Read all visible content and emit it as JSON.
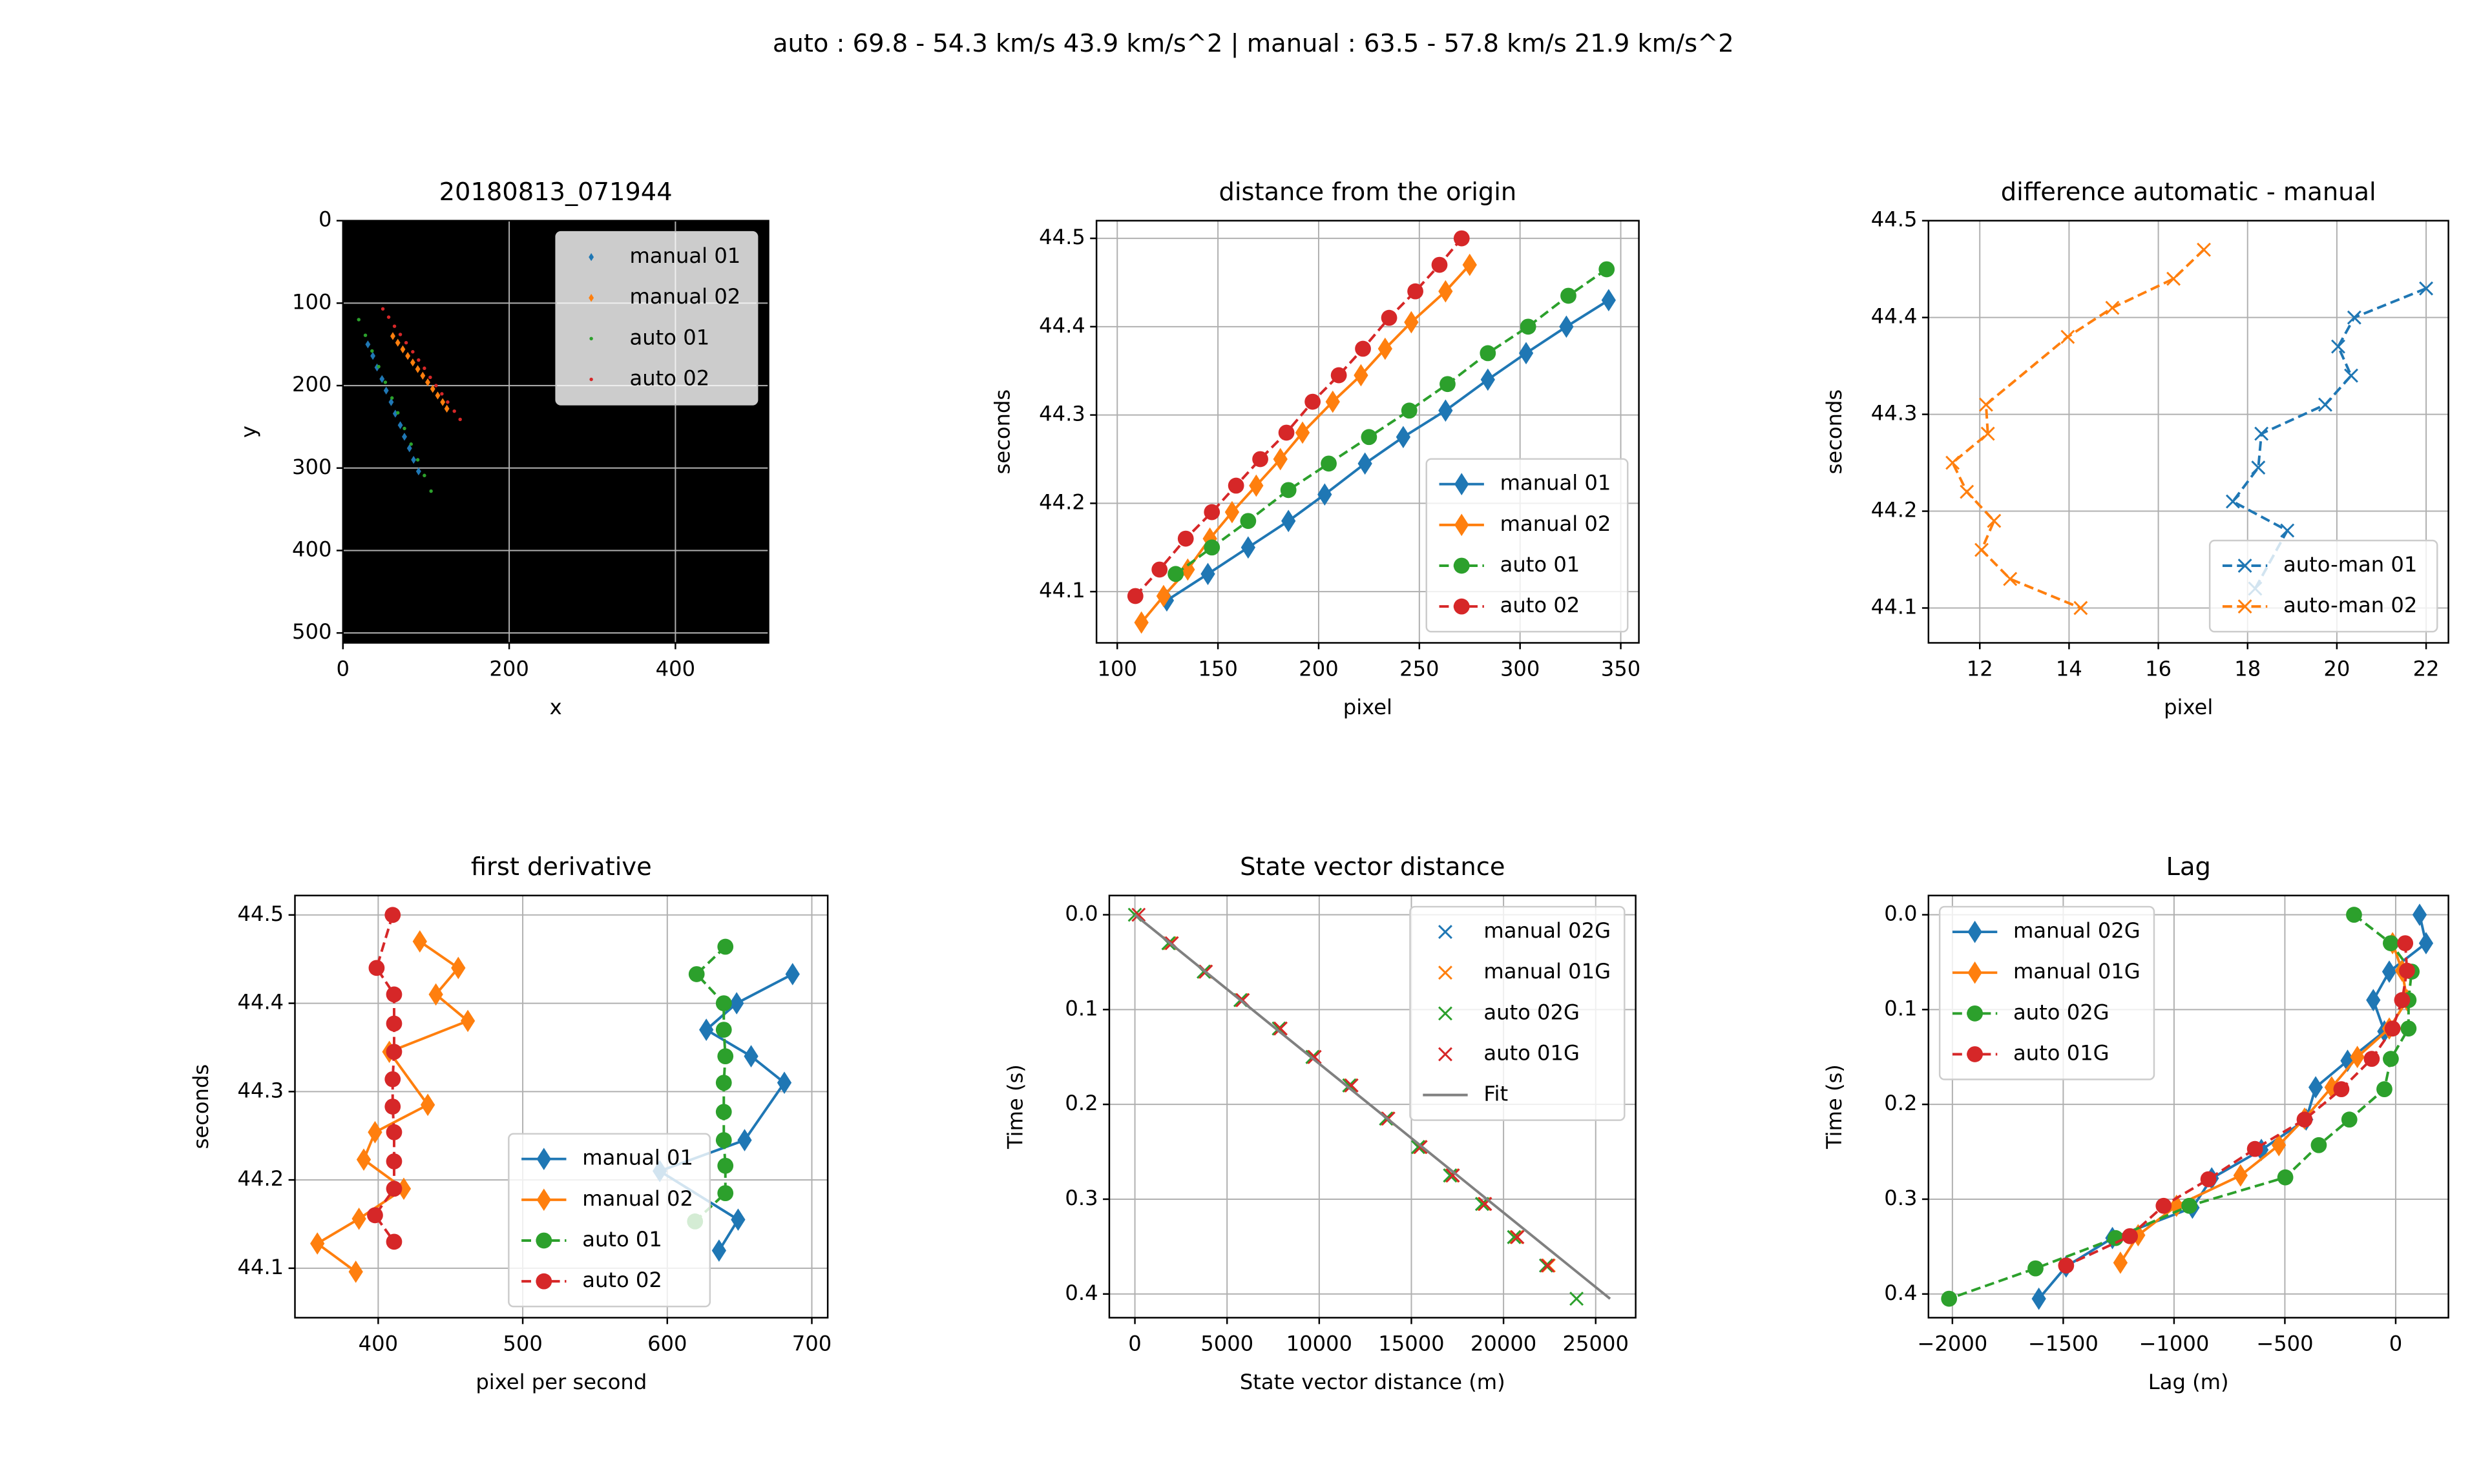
{
  "title": "auto : 69.8 - 54.3 km/s 43.9 km/s^2 | manual : 63.5 - 57.8 km/s 21.9 km/s^2",
  "chart_data": [
    {
      "type": "scatter",
      "title": "20180813_071944",
      "x_label": "x",
      "y_label": "y",
      "background": "#000000",
      "xlim": [
        0,
        512
      ],
      "ylim": [
        512,
        0
      ],
      "xticks": [
        0,
        200,
        400
      ],
      "yticks": [
        0,
        100,
        200,
        300,
        400,
        500
      ],
      "grid": true,
      "legend": "upper right",
      "series": [
        {
          "name": "manual 01",
          "color": "#1f77b4",
          "marker": "diamond-small",
          "linestyle": "none",
          "x": [
            30,
            36,
            41,
            47,
            52,
            58,
            63,
            69,
            74,
            80,
            85,
            91
          ],
          "values": [
            150,
            164,
            178,
            192,
            206,
            220,
            234,
            248,
            262,
            276,
            290,
            304
          ]
        },
        {
          "name": "manual 02",
          "color": "#ff7f0e",
          "marker": "diamond-small",
          "linestyle": "none",
          "x": [
            60,
            66,
            72,
            78,
            84,
            90,
            96,
            102,
            108,
            114,
            120,
            125
          ],
          "values": [
            140,
            148,
            156,
            164,
            172,
            180,
            188,
            196,
            204,
            212,
            220,
            228
          ]
        },
        {
          "name": "auto 01",
          "color": "#2ca02c",
          "marker": "point",
          "linestyle": "none",
          "x": [
            19,
            27,
            35,
            43,
            51,
            59,
            66,
            74,
            82,
            90,
            98,
            106
          ],
          "values": [
            120,
            139,
            158,
            177,
            196,
            215,
            233,
            252,
            271,
            290,
            309,
            328
          ]
        },
        {
          "name": "auto 02",
          "color": "#d62728",
          "marker": "point",
          "linestyle": "none",
          "x": [
            48,
            55,
            62,
            69,
            76,
            84,
            91,
            98,
            105,
            112,
            119,
            126,
            134,
            141
          ],
          "values": [
            107,
            117,
            128,
            138,
            148,
            159,
            169,
            179,
            190,
            200,
            210,
            220,
            231,
            241
          ]
        }
      ]
    },
    {
      "type": "line",
      "title": "distance from the origin",
      "x_label": "pixel",
      "y_label": "seconds",
      "xlim": [
        89.7,
        359
      ],
      "ylim": [
        44.042,
        44.52
      ],
      "xticks": [
        100,
        150,
        200,
        250,
        300,
        350
      ],
      "yticks": [
        44.1,
        44.2,
        44.3,
        44.4,
        44.5
      ],
      "grid": true,
      "legend": "lower right",
      "series": [
        {
          "name": "manual 01",
          "color": "#1f77b4",
          "marker": "diamond",
          "linestyle": "solid",
          "x": [
            124.6,
            145,
            165,
            185,
            203,
            223,
            242,
            263,
            284,
            303,
            323,
            344
          ],
          "values": [
            44.09,
            44.12,
            44.15,
            44.18,
            44.21,
            44.245,
            44.275,
            44.305,
            44.34,
            44.37,
            44.4,
            44.43
          ]
        },
        {
          "name": "manual 02",
          "color": "#ff7f0e",
          "marker": "diamond",
          "linestyle": "solid",
          "x": [
            112,
            123,
            135,
            146,
            157,
            169,
            181,
            192,
            207,
            221,
            233,
            246,
            263,
            275
          ],
          "values": [
            44.065,
            44.095,
            44.125,
            44.16,
            44.19,
            44.22,
            44.25,
            44.28,
            44.315,
            44.345,
            44.375,
            44.405,
            44.44,
            44.47
          ]
        },
        {
          "name": "auto 01",
          "color": "#2ca02c",
          "marker": "circle",
          "linestyle": "dashed",
          "x": [
            129,
            147,
            165,
            185,
            205,
            225,
            245,
            264,
            284,
            304,
            324,
            343
          ],
          "values": [
            44.12,
            44.15,
            44.18,
            44.215,
            44.245,
            44.275,
            44.305,
            44.335,
            44.37,
            44.4,
            44.435,
            44.465
          ]
        },
        {
          "name": "auto 02",
          "color": "#d62728",
          "marker": "circle",
          "linestyle": "dashed",
          "x": [
            109,
            121,
            134,
            147,
            159,
            171,
            184,
            197,
            210,
            222,
            235,
            248,
            260,
            271
          ],
          "values": [
            44.095,
            44.125,
            44.16,
            44.19,
            44.22,
            44.25,
            44.28,
            44.315,
            44.345,
            44.375,
            44.41,
            44.44,
            44.47,
            44.5
          ]
        }
      ]
    },
    {
      "type": "line",
      "title": "difference automatic - manual",
      "x_label": "pixel",
      "y_label": "seconds",
      "xlim": [
        10.85,
        22.5
      ],
      "ylim": [
        44.064,
        44.5
      ],
      "xticks": [
        12,
        14,
        16,
        18,
        20,
        22
      ],
      "yticks": [
        44.1,
        44.2,
        44.3,
        44.4,
        44.5
      ],
      "grid": true,
      "legend": "lower right",
      "series": [
        {
          "name": "auto-man 01",
          "color": "#1f77b4",
          "marker": "x",
          "linestyle": "dashed",
          "x": [
            22.0,
            20.39,
            20.03,
            20.32,
            19.74,
            18.31,
            18.24,
            17.67,
            18.89,
            18.17
          ],
          "values": [
            44.43,
            44.4,
            44.37,
            44.34,
            44.31,
            44.28,
            44.245,
            44.21,
            44.18,
            44.12
          ]
        },
        {
          "name": "auto-man 02",
          "color": "#ff7f0e",
          "marker": "x",
          "linestyle": "dashed",
          "x": [
            17.02,
            16.34,
            14.97,
            13.97,
            12.14,
            12.18,
            11.39,
            11.71,
            12.32,
            12.04,
            12.68,
            14.26
          ],
          "values": [
            44.47,
            44.44,
            44.41,
            44.38,
            44.31,
            44.28,
            44.25,
            44.22,
            44.19,
            44.16,
            44.13,
            44.1
          ]
        }
      ]
    },
    {
      "type": "line",
      "title": "first derivative",
      "x_label": "pixel per second",
      "y_label": "seconds",
      "xlim": [
        342.4,
        711
      ],
      "ylim": [
        44.044,
        44.522
      ],
      "xticks": [
        400,
        500,
        600,
        700
      ],
      "yticks": [
        44.1,
        44.2,
        44.3,
        44.4,
        44.5
      ],
      "grid": true,
      "legend": "lower center",
      "series": [
        {
          "name": "manual 01",
          "color": "#1f77b4",
          "marker": "diamond",
          "linestyle": "solid",
          "x": [
            686.7,
            648,
            627,
            658,
            681,
            653.5,
            594.8,
            649,
            635.8
          ],
          "values": [
            44.433,
            44.4,
            44.37,
            44.34,
            44.31,
            44.245,
            44.21,
            44.155,
            44.12
          ]
        },
        {
          "name": "manual 02",
          "color": "#ff7f0e",
          "marker": "diamond",
          "linestyle": "solid",
          "x": [
            428.8,
            455.4,
            439.9,
            462,
            407.7,
            434.3,
            397.8,
            390,
            417.7,
            386.7,
            357.9,
            384.5
          ],
          "values": [
            44.47,
            44.44,
            44.41,
            44.38,
            44.345,
            44.285,
            44.254,
            44.223,
            44.19,
            44.156,
            44.128,
            44.096
          ]
        },
        {
          "name": "auto 01",
          "color": "#2ca02c",
          "marker": "circle",
          "linestyle": "dashed",
          "x": [
            640.2,
            620.3,
            639.1,
            639.1,
            640.2,
            639.1,
            639.1,
            639.1,
            640.2,
            640.2,
            619.2
          ],
          "values": [
            44.464,
            44.433,
            44.4,
            44.37,
            44.34,
            44.31,
            44.277,
            44.245,
            44.216,
            44.185,
            44.153
          ]
        },
        {
          "name": "auto 02",
          "color": "#d62728",
          "marker": "circle",
          "linestyle": "dashed",
          "x": [
            410,
            398.9,
            411,
            411,
            411,
            410,
            410,
            411,
            411,
            411,
            397.8,
            411
          ],
          "values": [
            44.5,
            44.44,
            44.41,
            44.377,
            44.345,
            44.314,
            44.283,
            44.254,
            44.221,
            44.19,
            44.16,
            44.13
          ]
        }
      ]
    },
    {
      "type": "line",
      "title": "State vector distance",
      "x_label": "State vector distance (m)",
      "y_label": "Time (s)",
      "xlim": [
        -1389,
        27170
      ],
      "ylim": [
        0.425,
        -0.0203
      ],
      "xticks": [
        0,
        5000,
        10000,
        15000,
        20000,
        25000
      ],
      "yticks": [
        {
          "value": 0,
          "label": "0.0"
        },
        0.1,
        0.2,
        0.3,
        0.4
      ],
      "grid": true,
      "legend": "upper right",
      "series": [
        {
          "name": "manual 02G",
          "color": "#1f77b4",
          "marker": "x",
          "linestyle": "none",
          "x": [
            1823,
            3733,
            5729,
            7813,
            9635,
            11632,
            13628,
            15365,
            17101,
            18837,
            20573,
            22309
          ],
          "values": [
            0.03,
            0.06,
            0.09,
            0.12,
            0.15,
            0.18,
            0.215,
            0.245,
            0.275,
            0.305,
            0.34,
            0.37
          ]
        },
        {
          "name": "manual 01G",
          "color": "#ff7f0e",
          "marker": "x",
          "linestyle": "none",
          "x": [
            1900,
            3800,
            5800,
            7900,
            9700,
            11700,
            13700,
            15450,
            17200,
            18950,
            20700,
            22450
          ],
          "values": [
            0.03,
            0.06,
            0.09,
            0.12,
            0.15,
            0.18,
            0.215,
            0.245,
            0.275,
            0.305,
            0.34,
            0.37
          ]
        },
        {
          "name": "auto 02G",
          "color": "#2ca02c",
          "marker": "x",
          "linestyle": "none",
          "x": [
            0,
            1823,
            3733,
            5729,
            7813,
            9635,
            11632,
            13628,
            15365,
            17101,
            18837,
            20573,
            22309,
            23960
          ],
          "values": [
            0,
            0.03,
            0.06,
            0.09,
            0.12,
            0.15,
            0.18,
            0.215,
            0.245,
            0.275,
            0.305,
            0.34,
            0.37,
            0.405
          ]
        },
        {
          "name": "auto 01G",
          "color": "#d62728",
          "marker": "x",
          "linestyle": "none",
          "x": [
            200,
            2000,
            3850,
            5850,
            7900,
            9750,
            11750,
            13750,
            15500,
            17250,
            19000,
            20750,
            22400
          ],
          "values": [
            0,
            0.03,
            0.06,
            0.09,
            0.12,
            0.15,
            0.18,
            0.215,
            0.245,
            0.275,
            0.305,
            0.34,
            0.37
          ]
        },
        {
          "name": "Fit",
          "color": "#808080",
          "marker": "none",
          "linestyle": "solid",
          "x": [
            0,
            25780
          ],
          "values": [
            0,
            0.405
          ]
        }
      ]
    },
    {
      "type": "line",
      "title": "Lag",
      "x_label": "Lag (m)",
      "y_label": "Time (s)",
      "xlim": [
        -2108,
        238
      ],
      "ylim": [
        0.425,
        -0.0203
      ],
      "xticks": [
        {
          "value": -2000,
          "label": "−2000"
        },
        {
          "value": -1500,
          "label": "−1500"
        },
        {
          "value": -1000,
          "label": "−1000"
        },
        {
          "value": -500,
          "label": "−500"
        },
        0
      ],
      "yticks": [
        {
          "value": 0,
          "label": "0.0"
        },
        0.1,
        0.2,
        0.3,
        0.4
      ],
      "grid": true,
      "legend": "upper left",
      "series": [
        {
          "name": "manual 02G",
          "color": "#1f77b4",
          "marker": "diamond",
          "linestyle": "solid",
          "x": [
            108,
            137,
            -29,
            -101,
            -51,
            -217,
            -361,
            -404,
            -606,
            -830,
            -917,
            -1278,
            -1487,
            -1610
          ],
          "values": [
            0,
            0.03,
            0.06,
            0.09,
            0.123,
            0.154,
            0.182,
            0.216,
            0.248,
            0.278,
            0.309,
            0.341,
            0.371,
            0.405
          ]
        },
        {
          "name": "manual 01G",
          "color": "#ff7f0e",
          "marker": "diamond",
          "linestyle": "solid",
          "x": [
            -14,
            29,
            51,
            -29,
            -173,
            -289,
            -411,
            -527,
            -700,
            -989,
            -1162,
            -1242
          ],
          "values": [
            0.03,
            0.059,
            0.09,
            0.12,
            0.15,
            0.182,
            0.215,
            0.243,
            0.275,
            0.307,
            0.338,
            0.367
          ]
        },
        {
          "name": "auto 02G",
          "color": "#2ca02c",
          "marker": "circle",
          "linestyle": "dashed",
          "x": [
            -188,
            -22,
            72,
            58,
            58,
            -22,
            -51,
            -209,
            -347,
            -498,
            -931,
            -1264,
            -1625,
            -2015
          ],
          "values": [
            0,
            0.03,
            0.06,
            0.09,
            0.12,
            0.152,
            0.184,
            0.216,
            0.243,
            0.277,
            0.307,
            0.341,
            0.373,
            0.405
          ]
        },
        {
          "name": "auto 01G",
          "color": "#d62728",
          "marker": "circle",
          "linestyle": "dashed",
          "x": [
            43,
            51,
            29,
            -14,
            -108,
            -245,
            -411,
            -635,
            -845,
            -1047,
            -1199,
            -1487
          ],
          "values": [
            0.03,
            0.059,
            0.09,
            0.12,
            0.152,
            0.184,
            0.216,
            0.247,
            0.279,
            0.307,
            0.339,
            0.37
          ]
        }
      ]
    }
  ]
}
